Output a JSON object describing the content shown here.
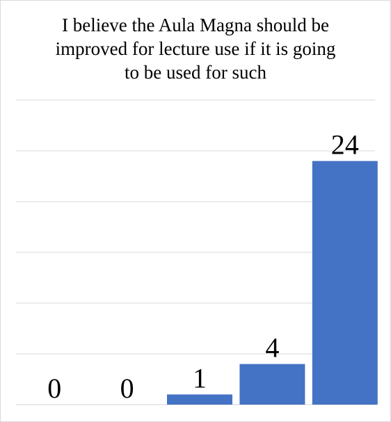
{
  "chart_data": {
    "type": "bar",
    "title_lines": [
      "I believe the Aula Magna should be",
      "improved for lecture use if it is going",
      "to be used for such"
    ],
    "categories": [
      "",
      "",
      "",
      "",
      ""
    ],
    "values": [
      0,
      0,
      1,
      4,
      24
    ],
    "data_labels": [
      "0",
      "0",
      "1",
      "4",
      "24"
    ],
    "ylim": [
      0,
      30
    ],
    "grid": true,
    "bar_color": "#4472c4",
    "xlabel": "",
    "ylabel": ""
  }
}
